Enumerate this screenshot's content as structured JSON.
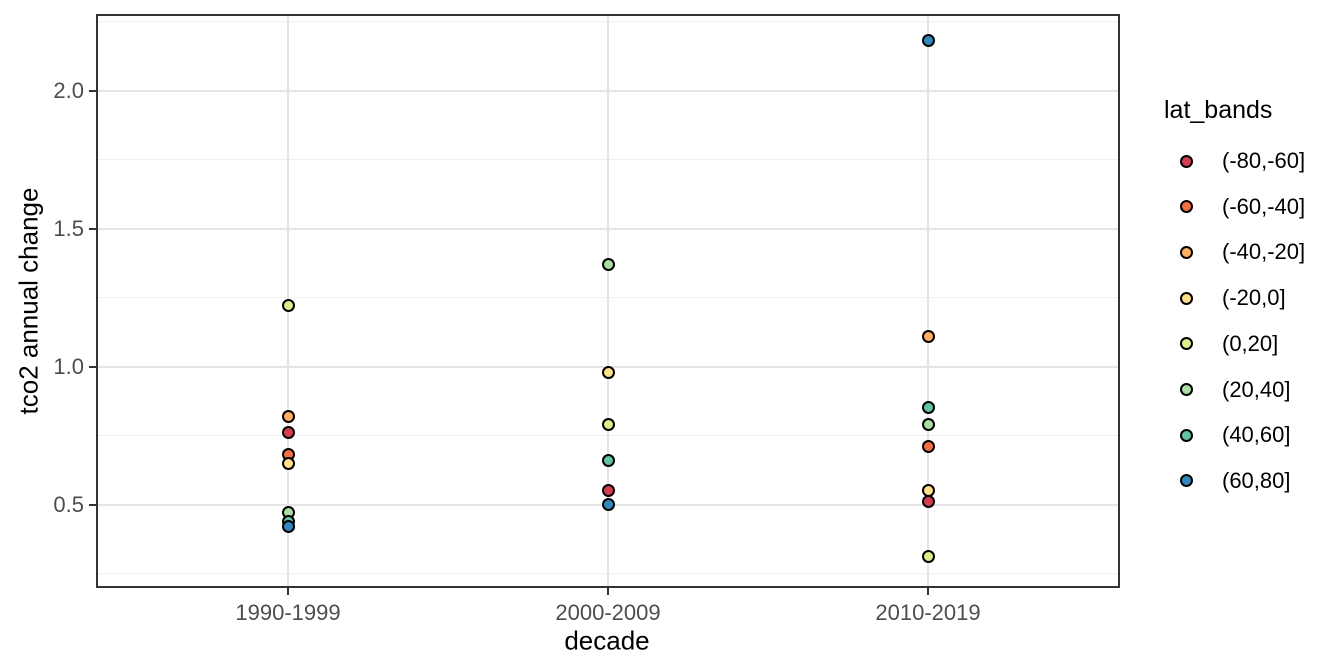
{
  "chart_data": {
    "type": "scatter",
    "title": "",
    "xlabel": "decade",
    "ylabel": "tco2 annual change",
    "x_categories": [
      "1990-1999",
      "2000-2009",
      "2010-2019"
    ],
    "y_ticks": [
      0.5,
      1.0,
      1.5,
      2.0
    ],
    "y_tick_labels": [
      "0.5",
      "1.0",
      "1.5",
      "2.0"
    ],
    "y_minor_ticks": [
      0.25,
      0.75,
      1.25,
      1.75,
      2.25
    ],
    "ylim": [
      0.19,
      2.28
    ],
    "grid": true,
    "legend": {
      "title": "lat_bands",
      "position": "right",
      "entries": [
        {
          "label": "(-80,-60]",
          "color": "#d53e4f"
        },
        {
          "label": "(-60,-40]",
          "color": "#f46d43"
        },
        {
          "label": "(-40,-20]",
          "color": "#fdae61"
        },
        {
          "label": "(-20,0]",
          "color": "#fee08b"
        },
        {
          "label": "(0,20]",
          "color": "#d9ef8b"
        },
        {
          "label": "(20,40]",
          "color": "#abdda4"
        },
        {
          "label": "(40,60]",
          "color": "#66c2a5"
        },
        {
          "label": "(60,80]",
          "color": "#3288bd"
        }
      ]
    },
    "points": [
      {
        "decade": "1990-1999",
        "lat_band": "(0,20]",
        "value": 1.22
      },
      {
        "decade": "1990-1999",
        "lat_band": "(-40,-20]",
        "value": 0.82
      },
      {
        "decade": "1990-1999",
        "lat_band": "(-80,-60]",
        "value": 0.76
      },
      {
        "decade": "1990-1999",
        "lat_band": "(-60,-40]",
        "value": 0.68
      },
      {
        "decade": "1990-1999",
        "lat_band": "(-20,0]",
        "value": 0.65
      },
      {
        "decade": "1990-1999",
        "lat_band": "(20,40]",
        "value": 0.47
      },
      {
        "decade": "1990-1999",
        "lat_band": "(40,60]",
        "value": 0.44
      },
      {
        "decade": "1990-1999",
        "lat_band": "(60,80]",
        "value": 0.42
      },
      {
        "decade": "2000-2009",
        "lat_band": "(20,40]",
        "value": 1.37
      },
      {
        "decade": "2000-2009",
        "lat_band": "(-20,0]",
        "value": 0.98
      },
      {
        "decade": "2000-2009",
        "lat_band": "(0,20]",
        "value": 0.79
      },
      {
        "decade": "2000-2009",
        "lat_band": "(40,60]",
        "value": 0.66
      },
      {
        "decade": "2000-2009",
        "lat_band": "(-80,-60]",
        "value": 0.55
      },
      {
        "decade": "2000-2009",
        "lat_band": "(60,80]",
        "value": 0.5
      },
      {
        "decade": "2010-2019",
        "lat_band": "(60,80]",
        "value": 2.18
      },
      {
        "decade": "2010-2019",
        "lat_band": "(-40,-20]",
        "value": 1.11
      },
      {
        "decade": "2010-2019",
        "lat_band": "(40,60]",
        "value": 0.85
      },
      {
        "decade": "2010-2019",
        "lat_band": "(20,40]",
        "value": 0.79
      },
      {
        "decade": "2010-2019",
        "lat_band": "(-60,-40]",
        "value": 0.71
      },
      {
        "decade": "2010-2019",
        "lat_band": "(-20,0]",
        "value": 0.55
      },
      {
        "decade": "2010-2019",
        "lat_band": "(-80,-60]",
        "value": 0.51
      },
      {
        "decade": "2010-2019",
        "lat_band": "(0,20]",
        "value": 0.31
      }
    ],
    "colors": {
      "panel_border": "#333333",
      "grid_major": "#e4e4e4",
      "grid_minor": "#f0f0f0",
      "tick_label": "#4d4d4d",
      "point_stroke": "#000000"
    }
  }
}
